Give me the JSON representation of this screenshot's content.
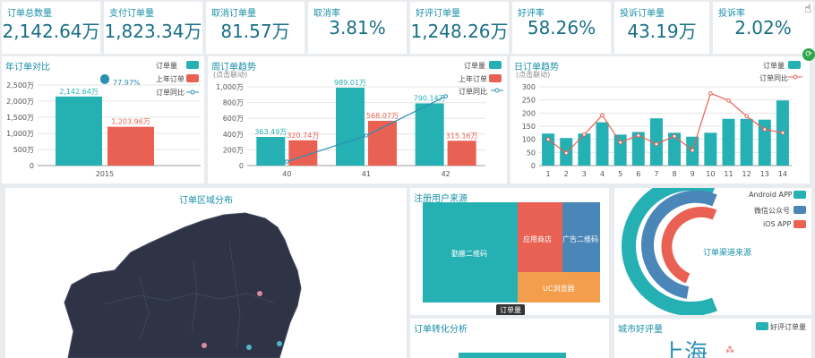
{
  "kpis": [
    {
      "title": "订单总数量",
      "value": "2,142.64万"
    },
    {
      "title": "支付订单量",
      "value": "1,823.34万"
    },
    {
      "title": "取消订单量",
      "value": "81.57万"
    },
    {
      "title": "取消率",
      "value": "3.81%"
    },
    {
      "title": "好评订单量",
      "value": "1,248.26万"
    },
    {
      "title": "好评率",
      "value": "58.26%"
    },
    {
      "title": "投诉订单量",
      "value": "43.19万"
    },
    {
      "title": "投诉率",
      "value": "2.02%"
    }
  ],
  "year_chart": {
    "title": "年订单对比",
    "legend": [
      "订单量",
      "上年订单",
      "订单同比"
    ],
    "colors": [
      "#25b0b4",
      "#e86152",
      "#2b8fb4"
    ],
    "chart_data": {
      "type": "bar",
      "categories": [
        "2015"
      ],
      "series": [
        {
          "name": "订单量",
          "values": [
            2142.64
          ],
          "label": "2,142.64万"
        },
        {
          "name": "上年订单",
          "values": [
            1203.96
          ],
          "label": "1,203.96万"
        }
      ],
      "ratio_label": "77.97%",
      "yticks": [
        "0",
        "500万",
        "1,000万",
        "1,500万",
        "2,000万",
        "2,500万"
      ],
      "ylim": [
        0,
        2500
      ]
    }
  },
  "week_chart": {
    "title": "周订单趋势",
    "subtitle": "(点击联动)",
    "legend": [
      "订单量",
      "上年订单",
      "订单同比"
    ],
    "chart_data": {
      "type": "bar",
      "categories": [
        "40",
        "41",
        "42"
      ],
      "series": [
        {
          "name": "订单量",
          "values": [
            363.49,
            989.01,
            790.14
          ],
          "labels": [
            "363.49万",
            "989.01万",
            "790.14万"
          ]
        },
        {
          "name": "上年订单",
          "values": [
            320.74,
            568.07,
            315.16
          ],
          "labels": [
            "320.74万",
            "568.07万",
            "315.16万"
          ]
        }
      ],
      "line": [
        0.05,
        0.38,
        0.88
      ],
      "yticks": [
        "0",
        "200万",
        "400万",
        "600万",
        "800万",
        "1,000万"
      ],
      "ylim": [
        0,
        1000
      ]
    }
  },
  "day_chart": {
    "title": "日订单趋势",
    "subtitle": "(点击联动)",
    "legend": [
      "订单量",
      "订单同比"
    ],
    "chart_data": {
      "type": "bar",
      "categories": [
        "1",
        "2",
        "3",
        "4",
        "5",
        "6",
        "7",
        "8",
        "9",
        "10",
        "11",
        "12",
        "13",
        "14"
      ],
      "values": [
        122,
        105,
        122,
        165,
        118,
        128,
        180,
        125,
        110,
        125,
        178,
        178,
        175,
        248
      ],
      "line": [
        100,
        48,
        118,
        192,
        88,
        115,
        82,
        112,
        58,
        275,
        248,
        188,
        138,
        125
      ],
      "yticks": [
        "0",
        "50",
        "100",
        "150",
        "200",
        "250",
        "300"
      ],
      "ylim": [
        0,
        300
      ]
    }
  },
  "map": {
    "title": "订单区域分布"
  },
  "treemap": {
    "title": "注册用户来源",
    "items": [
      "勤搬二维码",
      "应用商店",
      "广告二维码",
      "UC浏览器"
    ],
    "colors": [
      "#25b0b4",
      "#e86152",
      "#4a86b8",
      "#f29e4c"
    ],
    "tooltip": "订单量"
  },
  "channel": {
    "title": "订单渠道来源",
    "legend": [
      "Android APP",
      "微信公众号",
      "iOS APP"
    ],
    "colors": [
      "#25b0b4",
      "#4a86b8",
      "#e86152"
    ]
  },
  "conversion": {
    "title": "订单转化分析"
  },
  "city_rating": {
    "title": "城市好评量",
    "legend": "好评订单量",
    "city": "上海"
  }
}
